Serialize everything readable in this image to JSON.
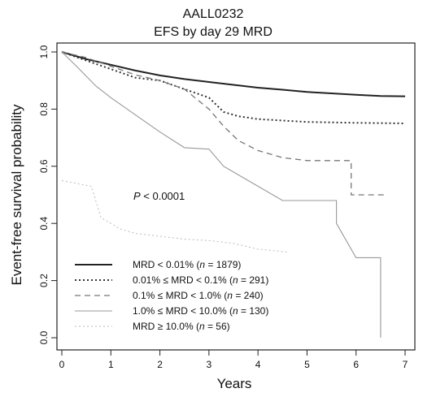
{
  "chart_data": {
    "type": "line",
    "title": "AALL0232",
    "subtitle": "EFS by day 29 MRD",
    "xlabel": "Years",
    "ylabel": "Event-free survival probability",
    "xlim": [
      0,
      7
    ],
    "ylim": [
      0,
      1
    ],
    "x_ticks": [
      0,
      1,
      2,
      3,
      4,
      5,
      6,
      7
    ],
    "y_ticks": [
      0.0,
      0.2,
      0.4,
      0.6,
      0.8,
      1.0
    ],
    "annotation": {
      "prefix": "P",
      "rest": " < 0.0001"
    },
    "legend_position": "bottom-left",
    "series": [
      {
        "name": "MRD < 0.01% (n = 1879)",
        "label_parts": [
          "MRD < 0.01% (",
          "n",
          " = 1879)"
        ],
        "style": "solid",
        "color": "#222222",
        "width": 2.0,
        "points": [
          [
            0,
            1.0
          ],
          [
            0.5,
            0.975
          ],
          [
            1,
            0.955
          ],
          [
            1.5,
            0.935
          ],
          [
            2,
            0.918
          ],
          [
            2.5,
            0.905
          ],
          [
            3,
            0.895
          ],
          [
            3.5,
            0.885
          ],
          [
            4,
            0.875
          ],
          [
            4.5,
            0.868
          ],
          [
            5,
            0.86
          ],
          [
            5.5,
            0.855
          ],
          [
            6,
            0.85
          ],
          [
            6.5,
            0.846
          ],
          [
            7,
            0.845
          ]
        ]
      },
      {
        "name": "0.01% ≤ MRD < 0.1% (n = 291)",
        "label_parts": [
          "0.01% ≤ MRD < 0.1% (",
          "n",
          " = 291)"
        ],
        "style": "dotted",
        "color": "#333333",
        "width": 2.0,
        "points": [
          [
            0,
            1.0
          ],
          [
            0.5,
            0.97
          ],
          [
            1,
            0.94
          ],
          [
            1.5,
            0.91
          ],
          [
            2,
            0.9
          ],
          [
            2.5,
            0.87
          ],
          [
            3,
            0.84
          ],
          [
            3.3,
            0.79
          ],
          [
            3.6,
            0.775
          ],
          [
            4,
            0.765
          ],
          [
            4.5,
            0.76
          ],
          [
            5,
            0.755
          ],
          [
            6,
            0.752
          ],
          [
            7,
            0.75
          ]
        ]
      },
      {
        "name": "0.1% ≤ MRD < 1.0% (n = 240)",
        "label_parts": [
          "0.1% ≤ MRD < 1.0% (",
          "n",
          " = 240)"
        ],
        "style": "dashed",
        "color": "#777777",
        "width": 1.3,
        "points": [
          [
            0,
            1.0
          ],
          [
            0.5,
            0.98
          ],
          [
            1,
            0.95
          ],
          [
            1.5,
            0.92
          ],
          [
            2,
            0.9
          ],
          [
            2.5,
            0.87
          ],
          [
            3,
            0.8
          ],
          [
            3.3,
            0.74
          ],
          [
            3.6,
            0.69
          ],
          [
            4,
            0.655
          ],
          [
            4.5,
            0.63
          ],
          [
            5,
            0.62
          ],
          [
            5.5,
            0.62
          ],
          [
            5.9,
            0.62
          ],
          [
            5.9,
            0.5
          ],
          [
            6.6,
            0.5
          ]
        ]
      },
      {
        "name": "1.0% ≤ MRD < 10.0% (n = 130)",
        "label_parts": [
          "1.0% ≤ MRD < 10.0% (",
          "n",
          " = 130)"
        ],
        "style": "solid",
        "color": "#999999",
        "width": 1.1,
        "points": [
          [
            0,
            1.0
          ],
          [
            0.3,
            0.95
          ],
          [
            0.7,
            0.88
          ],
          [
            1,
            0.84
          ],
          [
            1.5,
            0.78
          ],
          [
            2,
            0.72
          ],
          [
            2.5,
            0.665
          ],
          [
            3,
            0.66
          ],
          [
            3.3,
            0.6
          ],
          [
            3.6,
            0.57
          ],
          [
            4,
            0.53
          ],
          [
            4.5,
            0.48
          ],
          [
            5,
            0.48
          ],
          [
            5.6,
            0.48
          ],
          [
            5.6,
            0.4
          ],
          [
            6,
            0.28
          ],
          [
            6.5,
            0.28
          ],
          [
            6.5,
            0.0
          ]
        ]
      },
      {
        "name": "MRD ≥ 10.0% (n = 56)",
        "label_parts": [
          "MRD ≥ 10.0% (",
          "n",
          " = 56)"
        ],
        "style": "dotted",
        "color": "#bbbbbb",
        "width": 1.0,
        "points": [
          [
            0,
            0.55
          ],
          [
            0.3,
            0.54
          ],
          [
            0.6,
            0.53
          ],
          [
            0.8,
            0.42
          ],
          [
            1.0,
            0.4
          ],
          [
            1.2,
            0.38
          ],
          [
            1.5,
            0.365
          ],
          [
            2,
            0.355
          ],
          [
            2.5,
            0.345
          ],
          [
            3,
            0.34
          ],
          [
            3.5,
            0.33
          ],
          [
            4,
            0.31
          ],
          [
            4.6,
            0.3
          ]
        ]
      }
    ]
  }
}
